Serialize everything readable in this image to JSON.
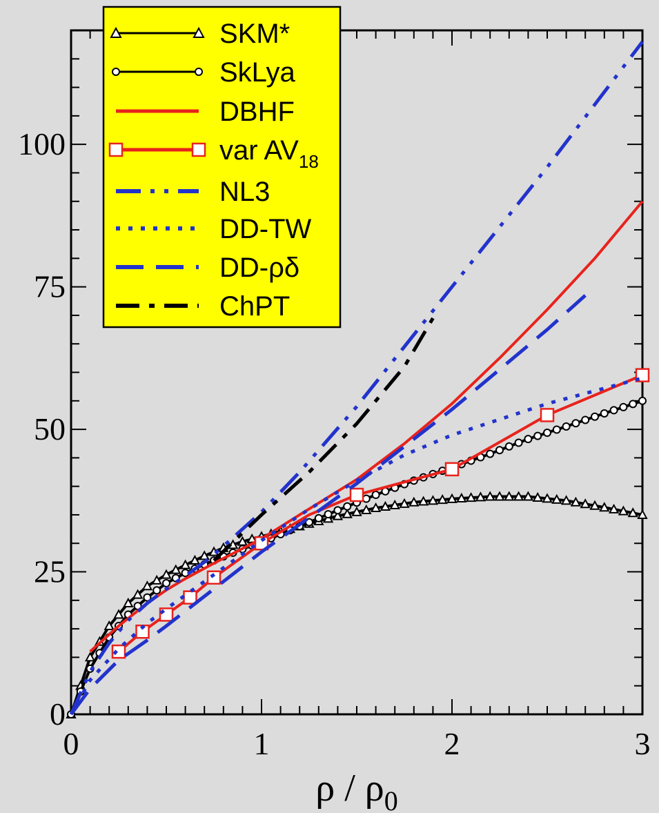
{
  "chart_data": {
    "type": "line",
    "xlabel": "ρ / ρ",
    "xlabel_subscript": "0",
    "ylabel": "",
    "xlim": [
      0,
      3
    ],
    "ylim": [
      0,
      120
    ],
    "x_ticks": [
      "0",
      "1",
      "2",
      "3"
    ],
    "y_ticks": [
      "0",
      "25",
      "50",
      "75",
      "100"
    ],
    "legend_position": "top-left",
    "legend_background": "#ffff00",
    "series": [
      {
        "name": "SKM*",
        "style": "line-triangle-markers",
        "color": "#000000",
        "x": [
          0.0,
          0.1,
          0.2,
          0.3,
          0.4,
          0.5,
          0.6,
          0.7,
          0.8,
          0.9,
          1.0,
          1.2,
          1.4,
          1.6,
          1.8,
          2.0,
          2.2,
          2.4,
          2.6,
          2.8,
          3.0
        ],
        "y": [
          0,
          10,
          15.5,
          19.5,
          22.5,
          24.5,
          26.2,
          27.8,
          29.2,
          30.3,
          31.2,
          33,
          34.8,
          36.2,
          37.2,
          37.8,
          38.2,
          38.2,
          37.5,
          36.3,
          35
        ]
      },
      {
        "name": "SkLya",
        "style": "line-circle-markers",
        "color": "#000000",
        "x": [
          0.0,
          0.1,
          0.2,
          0.3,
          0.4,
          0.5,
          0.6,
          0.7,
          0.8,
          0.9,
          1.0,
          1.2,
          1.4,
          1.6,
          1.8,
          2.0,
          2.2,
          2.4,
          2.6,
          2.8,
          3.0
        ],
        "y": [
          0,
          8,
          13.5,
          17.5,
          20.5,
          23,
          24.8,
          26.3,
          27.7,
          29,
          30.2,
          33,
          35.8,
          38.5,
          41,
          43.3,
          45.7,
          48.3,
          50.5,
          52.8,
          55
        ]
      },
      {
        "name": "DBHF",
        "style": "solid",
        "color": "#e8231c",
        "x": [
          0.1,
          0.25,
          0.4,
          0.5,
          0.6,
          0.75,
          1.0,
          1.2,
          1.5,
          1.75,
          2.0,
          2.25,
          2.5,
          2.75,
          3.0
        ],
        "y": [
          11,
          15.5,
          19.5,
          21.8,
          23.8,
          26.5,
          30.8,
          35,
          41.2,
          47.5,
          54.5,
          62.5,
          71,
          80,
          90
        ]
      },
      {
        "name": "var AV18",
        "style": "solid-square-markers",
        "color": "#e8231c",
        "x": [
          0.25,
          0.375,
          0.5,
          0.625,
          0.75,
          1.0,
          1.25,
          1.5,
          2.0,
          2.5,
          3.0
        ],
        "y": [
          11,
          14.5,
          17.5,
          20.5,
          24,
          30,
          35,
          38.5,
          43,
          52.5,
          59.5
        ],
        "marker_x": [
          0.25,
          0.375,
          0.5,
          0.625,
          0.75,
          1.0,
          1.5,
          2.0,
          2.5,
          3.0
        ],
        "marker_y": [
          11,
          14.5,
          17.5,
          20.5,
          24,
          30,
          38.5,
          43,
          52.5,
          59.5
        ]
      },
      {
        "name": "NL3",
        "style": "dash-dot-dot",
        "color": "#2233cc",
        "x": [
          0.0,
          0.1,
          0.2,
          0.3,
          0.4,
          0.5,
          0.6,
          0.7,
          0.8,
          1.0,
          1.2,
          1.5,
          2.0,
          2.5,
          3.0
        ],
        "y": [
          0,
          7.5,
          12.5,
          16.5,
          19.5,
          22,
          24.3,
          26.7,
          29.5,
          35.5,
          42.5,
          54,
          75,
          96,
          118
        ]
      },
      {
        "name": "DD-TW",
        "style": "dotted",
        "color": "#2233cc",
        "x": [
          0.0,
          0.1,
          0.25,
          0.4,
          0.5,
          0.75,
          1.0,
          1.25,
          1.5,
          1.75,
          2.0,
          2.5,
          3.0
        ],
        "y": [
          0,
          6,
          11.5,
          16,
          18.5,
          24.5,
          30.5,
          36,
          41,
          45.5,
          49,
          54.5,
          59
        ]
      },
      {
        "name": "DD-ρδ",
        "style": "dashed",
        "color": "#2233cc",
        "x": [
          0.0,
          0.1,
          0.25,
          0.4,
          0.5,
          0.75,
          1.0,
          1.25,
          1.5,
          1.75,
          2.0,
          2.25,
          2.5,
          2.7
        ],
        "y": [
          0,
          4.5,
          9.5,
          13,
          15.5,
          22,
          28.5,
          34.5,
          40.5,
          47,
          53.5,
          60.5,
          67.5,
          73.5
        ]
      },
      {
        "name": "ChPT",
        "style": "dash-dot",
        "color": "#000000",
        "x": [
          0.75,
          1.0,
          1.25,
          1.5,
          1.75,
          1.9
        ],
        "y": [
          27,
          35,
          42.5,
          51,
          61,
          69.5
        ]
      }
    ]
  },
  "legend": {
    "entries": [
      {
        "label": "SKM*",
        "sub": ""
      },
      {
        "label": "SkLya",
        "sub": ""
      },
      {
        "label": "DBHF",
        "sub": ""
      },
      {
        "label": "var AV",
        "sub": "18"
      },
      {
        "label": "NL3",
        "sub": ""
      },
      {
        "label": "DD-TW",
        "sub": ""
      },
      {
        "label": "DD-ρδ",
        "sub": ""
      },
      {
        "label": "ChPT",
        "sub": ""
      }
    ]
  }
}
